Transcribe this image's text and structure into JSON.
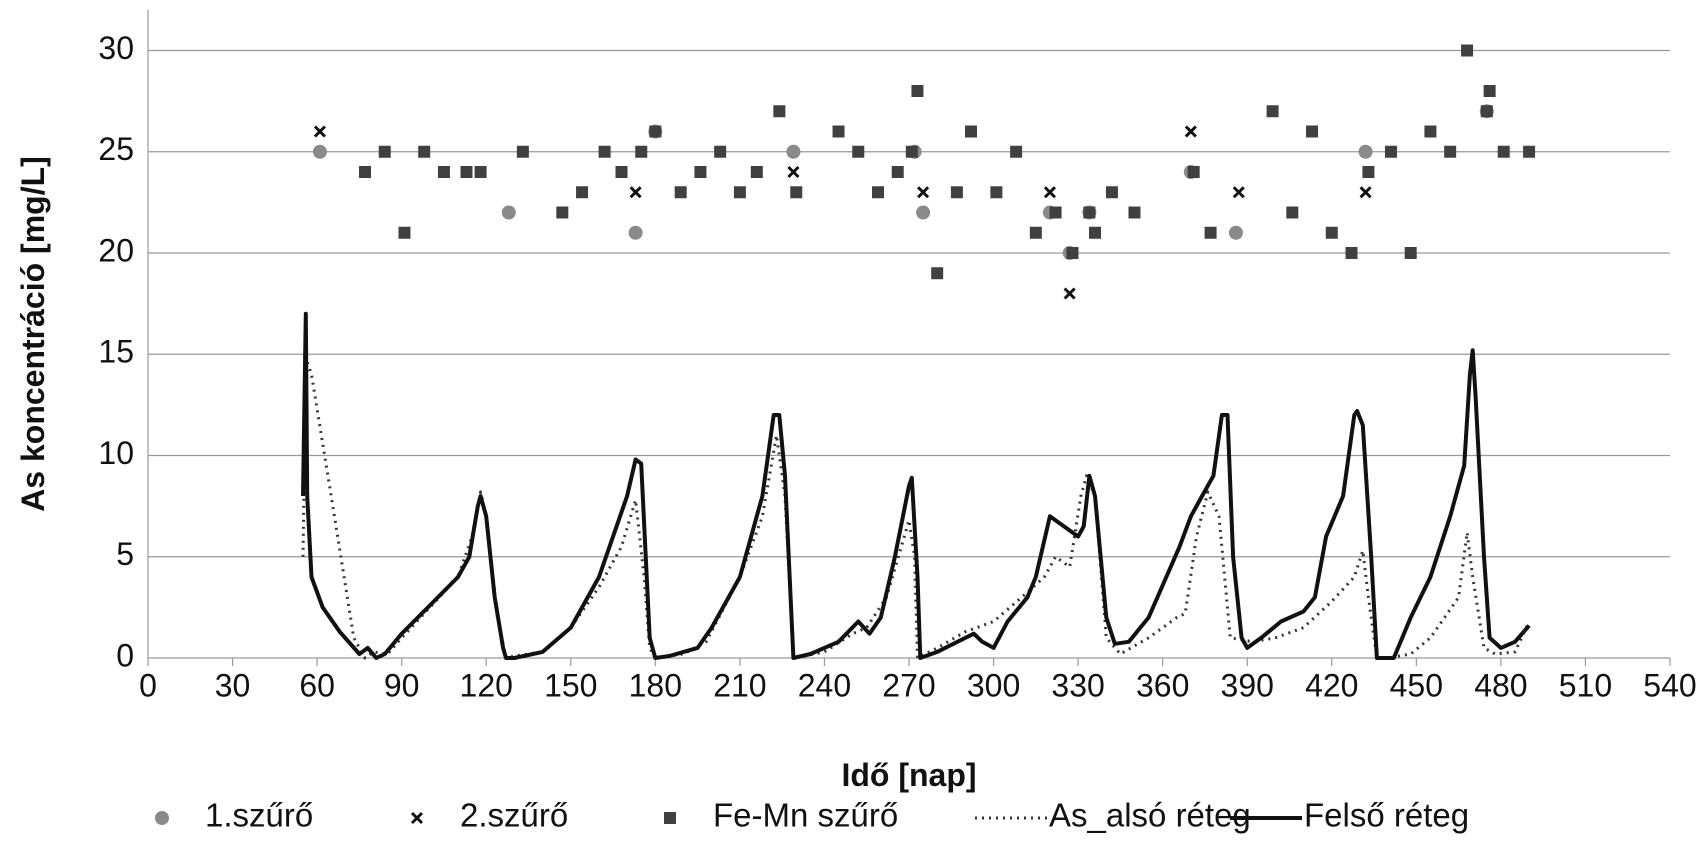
{
  "chart_data": {
    "type": "combo",
    "x_label": "Idő [nap]",
    "y_label": "As koncentráció [mg/L]",
    "xlim": [
      0,
      540
    ],
    "xticks": [
      0,
      30,
      60,
      90,
      120,
      150,
      180,
      210,
      240,
      270,
      300,
      330,
      360,
      390,
      420,
      450,
      480,
      510,
      540
    ],
    "ylim": [
      0,
      32
    ],
    "yticks": [
      0,
      5,
      10,
      15,
      20,
      25,
      30
    ],
    "grid": true,
    "legend": "bottom",
    "series": [
      {
        "name": "1.szűrő",
        "type": "scatter",
        "marker": "circle",
        "color": "#8a8a8a",
        "x": [
          61,
          128,
          173,
          180,
          229,
          272,
          275,
          320,
          327,
          334,
          370,
          386,
          432,
          475
        ],
        "values": [
          25,
          22,
          21,
          26,
          25,
          25,
          22,
          22,
          20,
          22,
          24,
          21,
          25,
          27
        ]
      },
      {
        "name": "2.szűrő",
        "type": "scatter",
        "marker": "cross",
        "color": "#111111",
        "x": [
          61,
          173,
          180,
          229,
          271,
          275,
          320,
          327,
          334,
          370,
          387,
          432,
          475
        ],
        "values": [
          26,
          23,
          26,
          24,
          25,
          23,
          23,
          18,
          22,
          26,
          23,
          23,
          27
        ]
      },
      {
        "name": "Fe-Mn szűrő",
        "type": "scatter",
        "marker": "square",
        "color": "#404040",
        "x": [
          77,
          84,
          91,
          98,
          105,
          113,
          118,
          133,
          147,
          154,
          162,
          168,
          175,
          180,
          189,
          196,
          203,
          210,
          216,
          224,
          230,
          245,
          252,
          259,
          266,
          271,
          273,
          280,
          287,
          292,
          301,
          308,
          315,
          322,
          328,
          334,
          336,
          342,
          350,
          371,
          377,
          399,
          406,
          413,
          420,
          427,
          433,
          441,
          448,
          455,
          462,
          468,
          476,
          475,
          481,
          490
        ],
        "values": [
          24,
          25,
          21,
          25,
          24,
          24,
          24,
          25,
          22,
          23,
          25,
          24,
          25,
          26,
          23,
          24,
          25,
          23,
          24,
          27,
          23,
          26,
          25,
          23,
          24,
          25,
          28,
          19,
          23,
          26,
          23,
          25,
          21,
          22,
          20,
          22,
          21,
          23,
          22,
          24,
          21,
          27,
          22,
          26,
          21,
          20,
          24,
          25,
          20,
          26,
          25,
          30,
          28,
          27,
          25,
          25
        ]
      },
      {
        "name": "As_alsó réteg",
        "type": "line",
        "dash": true,
        "color": "#333333",
        "x": [
          55,
          56,
          58,
          65,
          73,
          77,
          80,
          85,
          90,
          100,
          110,
          115,
          118,
          120,
          124,
          127,
          130,
          140,
          150,
          160,
          168,
          173,
          176,
          178,
          180,
          190,
          198,
          210,
          218,
          223,
          226,
          229,
          240,
          250,
          255,
          262,
          270,
          272,
          273,
          280,
          290,
          300,
          310,
          318,
          322,
          327,
          331,
          333,
          336,
          340,
          345,
          355,
          365,
          368,
          372,
          376,
          380,
          384,
          392,
          400,
          410,
          420,
          428,
          431,
          433,
          436,
          440,
          448,
          455,
          465,
          468,
          470,
          474,
          478,
          485,
          490
        ],
        "values": [
          5,
          14.8,
          14,
          8,
          1,
          0,
          0.3,
          0.2,
          1,
          2.5,
          4,
          6,
          8.2,
          7,
          2,
          0,
          0.1,
          0.3,
          1.5,
          3.5,
          5.5,
          7.8,
          4,
          0.5,
          0,
          0.2,
          0.8,
          4,
          7,
          11,
          8,
          0,
          0.3,
          1.2,
          1.5,
          3,
          6.8,
          5,
          0,
          0.5,
          1.3,
          1.8,
          3,
          4,
          5,
          4.5,
          8,
          9,
          8,
          1,
          0.2,
          1,
          2,
          2.2,
          6,
          8.2,
          7,
          1,
          0.8,
          1,
          1.5,
          2.8,
          4,
          5.3,
          3,
          0,
          0,
          0.2,
          1,
          3,
          6.2,
          4,
          0.5,
          0.2,
          0.3,
          1.8
        ]
      },
      {
        "name": "Felső réteg",
        "type": "line",
        "dash": false,
        "color": "#111111",
        "x": [
          55,
          56,
          56.5,
          58,
          62,
          68,
          75,
          78,
          81,
          84,
          90,
          100,
          110,
          114,
          117,
          118,
          120,
          123,
          126,
          127,
          130,
          140,
          150,
          160,
          170,
          173,
          175,
          178,
          180,
          185,
          190,
          195,
          200,
          210,
          218,
          222,
          224,
          226,
          228,
          229,
          235,
          245,
          252,
          256,
          260,
          265,
          270,
          271,
          273,
          274,
          280,
          290,
          293,
          296,
          300,
          305,
          312,
          315,
          320,
          325,
          330,
          332,
          334,
          336,
          340,
          343,
          348,
          355,
          366,
          370,
          374,
          378,
          381,
          383,
          385,
          388,
          390,
          395,
          402,
          410,
          414,
          418,
          424,
          428,
          429,
          431,
          434,
          436,
          442,
          448,
          455,
          462,
          467,
          469,
          470,
          471,
          474,
          476,
          480,
          485,
          490
        ],
        "values": [
          8,
          17,
          8,
          4,
          2.5,
          1.3,
          0.2,
          0.5,
          0,
          0.2,
          1.2,
          2.6,
          4,
          5,
          7.5,
          8,
          7,
          3,
          0.5,
          0,
          0,
          0.3,
          1.5,
          4,
          8,
          9.8,
          9.6,
          1,
          0,
          0.1,
          0.3,
          0.5,
          1.5,
          4,
          8,
          12,
          12,
          9,
          3,
          0,
          0.2,
          0.8,
          1.8,
          1.2,
          2,
          5,
          8.5,
          8.9,
          4,
          0,
          0.3,
          1,
          1.2,
          0.8,
          0.5,
          1.8,
          3,
          4,
          7,
          6.5,
          6,
          6.5,
          9,
          8,
          2,
          0.7,
          0.8,
          2,
          5.5,
          7,
          8,
          9,
          12,
          12,
          5,
          1,
          0.5,
          1,
          1.8,
          2.3,
          3,
          6,
          8,
          12,
          12.2,
          11.5,
          5,
          0,
          0,
          2,
          4,
          7,
          9.5,
          14,
          15.2,
          13,
          5,
          1,
          0.5,
          0.8,
          1.6
        ]
      }
    ]
  }
}
